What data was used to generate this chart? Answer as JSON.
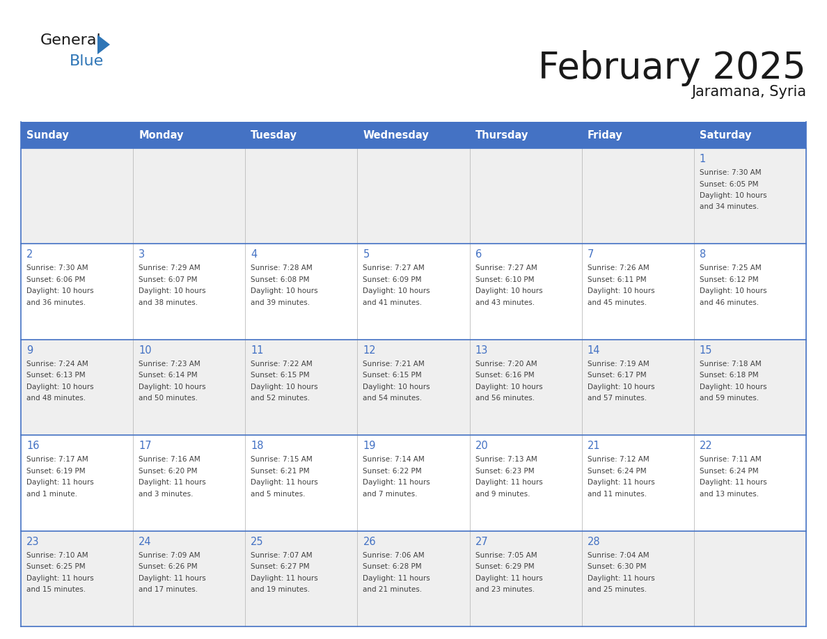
{
  "title": "February 2025",
  "subtitle": "Jaramana, Syria",
  "days_of_week": [
    "Sunday",
    "Monday",
    "Tuesday",
    "Wednesday",
    "Thursday",
    "Friday",
    "Saturday"
  ],
  "header_bg": "#4472C4",
  "header_text": "#FFFFFF",
  "row_bg_odd": "#EFEFEF",
  "row_bg_even": "#FFFFFF",
  "cell_border_color": "#4472C4",
  "day_number_color": "#4472C4",
  "info_text_color": "#404040",
  "title_color": "#1a1a1a",
  "subtitle_color": "#1a1a1a",
  "logo_text_color": "#1a1a1a",
  "logo_blue_color": "#2E75B6",
  "calendar_data": [
    [
      null,
      null,
      null,
      null,
      null,
      null,
      {
        "day": "1",
        "sunrise": "7:30 AM",
        "sunset": "6:05 PM",
        "daylight": "10 hours and 34 minutes."
      }
    ],
    [
      {
        "day": "2",
        "sunrise": "7:30 AM",
        "sunset": "6:06 PM",
        "daylight": "10 hours and 36 minutes."
      },
      {
        "day": "3",
        "sunrise": "7:29 AM",
        "sunset": "6:07 PM",
        "daylight": "10 hours and 38 minutes."
      },
      {
        "day": "4",
        "sunrise": "7:28 AM",
        "sunset": "6:08 PM",
        "daylight": "10 hours and 39 minutes."
      },
      {
        "day": "5",
        "sunrise": "7:27 AM",
        "sunset": "6:09 PM",
        "daylight": "10 hours and 41 minutes."
      },
      {
        "day": "6",
        "sunrise": "7:27 AM",
        "sunset": "6:10 PM",
        "daylight": "10 hours and 43 minutes."
      },
      {
        "day": "7",
        "sunrise": "7:26 AM",
        "sunset": "6:11 PM",
        "daylight": "10 hours and 45 minutes."
      },
      {
        "day": "8",
        "sunrise": "7:25 AM",
        "sunset": "6:12 PM",
        "daylight": "10 hours and 46 minutes."
      }
    ],
    [
      {
        "day": "9",
        "sunrise": "7:24 AM",
        "sunset": "6:13 PM",
        "daylight": "10 hours and 48 minutes."
      },
      {
        "day": "10",
        "sunrise": "7:23 AM",
        "sunset": "6:14 PM",
        "daylight": "10 hours and 50 minutes."
      },
      {
        "day": "11",
        "sunrise": "7:22 AM",
        "sunset": "6:15 PM",
        "daylight": "10 hours and 52 minutes."
      },
      {
        "day": "12",
        "sunrise": "7:21 AM",
        "sunset": "6:15 PM",
        "daylight": "10 hours and 54 minutes."
      },
      {
        "day": "13",
        "sunrise": "7:20 AM",
        "sunset": "6:16 PM",
        "daylight": "10 hours and 56 minutes."
      },
      {
        "day": "14",
        "sunrise": "7:19 AM",
        "sunset": "6:17 PM",
        "daylight": "10 hours and 57 minutes."
      },
      {
        "day": "15",
        "sunrise": "7:18 AM",
        "sunset": "6:18 PM",
        "daylight": "10 hours and 59 minutes."
      }
    ],
    [
      {
        "day": "16",
        "sunrise": "7:17 AM",
        "sunset": "6:19 PM",
        "daylight": "11 hours and 1 minute."
      },
      {
        "day": "17",
        "sunrise": "7:16 AM",
        "sunset": "6:20 PM",
        "daylight": "11 hours and 3 minutes."
      },
      {
        "day": "18",
        "sunrise": "7:15 AM",
        "sunset": "6:21 PM",
        "daylight": "11 hours and 5 minutes."
      },
      {
        "day": "19",
        "sunrise": "7:14 AM",
        "sunset": "6:22 PM",
        "daylight": "11 hours and 7 minutes."
      },
      {
        "day": "20",
        "sunrise": "7:13 AM",
        "sunset": "6:23 PM",
        "daylight": "11 hours and 9 minutes."
      },
      {
        "day": "21",
        "sunrise": "7:12 AM",
        "sunset": "6:24 PM",
        "daylight": "11 hours and 11 minutes."
      },
      {
        "day": "22",
        "sunrise": "7:11 AM",
        "sunset": "6:24 PM",
        "daylight": "11 hours and 13 minutes."
      }
    ],
    [
      {
        "day": "23",
        "sunrise": "7:10 AM",
        "sunset": "6:25 PM",
        "daylight": "11 hours and 15 minutes."
      },
      {
        "day": "24",
        "sunrise": "7:09 AM",
        "sunset": "6:26 PM",
        "daylight": "11 hours and 17 minutes."
      },
      {
        "day": "25",
        "sunrise": "7:07 AM",
        "sunset": "6:27 PM",
        "daylight": "11 hours and 19 minutes."
      },
      {
        "day": "26",
        "sunrise": "7:06 AM",
        "sunset": "6:28 PM",
        "daylight": "11 hours and 21 minutes."
      },
      {
        "day": "27",
        "sunrise": "7:05 AM",
        "sunset": "6:29 PM",
        "daylight": "11 hours and 23 minutes."
      },
      {
        "day": "28",
        "sunrise": "7:04 AM",
        "sunset": "6:30 PM",
        "daylight": "11 hours and 25 minutes."
      },
      null
    ]
  ]
}
